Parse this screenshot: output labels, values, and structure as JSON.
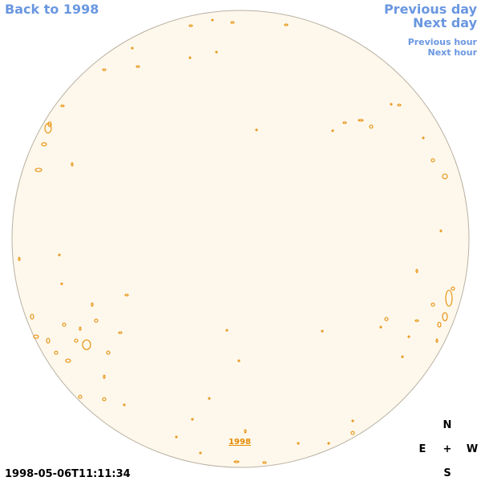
{
  "navigation": {
    "back": "Back to 1998",
    "previous_day": "Previous day",
    "next_day": "Next day",
    "previous_hour": "Previous hour",
    "next_hour": "Next hour"
  },
  "disk_label": "1998",
  "compass": {
    "north": "N",
    "east": "E",
    "center": "+",
    "west": "W",
    "south": "S"
  },
  "timestamp": "1998-05-06T11:11:34"
}
